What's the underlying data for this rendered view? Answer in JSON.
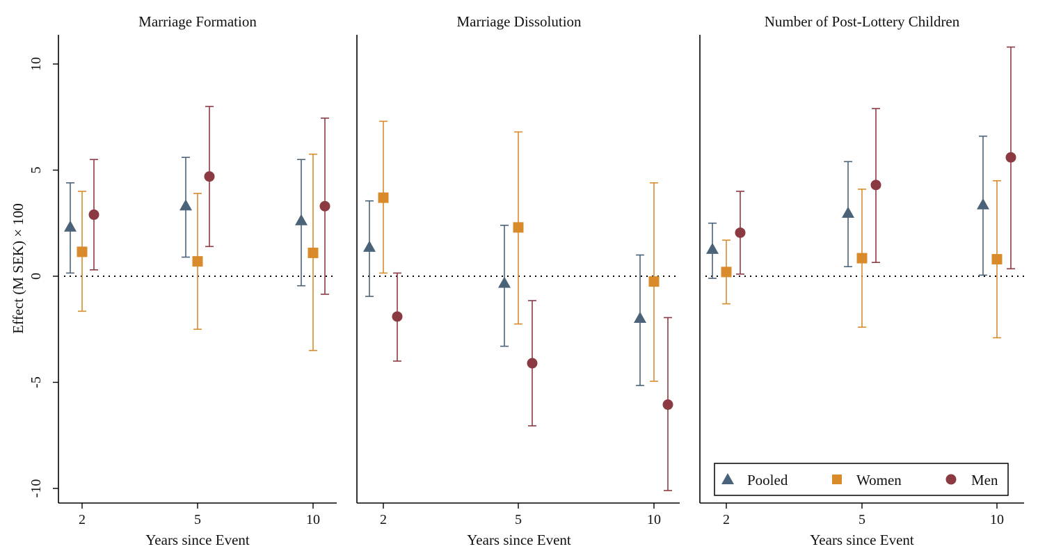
{
  "chart_data": {
    "type": "scatter",
    "ylabel": "Effect (M SEK) × 100",
    "ylim": [
      -10.8,
      11.4
    ],
    "yticks": [
      10,
      5,
      0,
      -5,
      -10
    ],
    "ytick_labels": [
      "10",
      "5",
      "0",
      "-5",
      "-10"
    ],
    "xlabel": "Years since Event",
    "categories": [
      "2",
      "5",
      "10"
    ],
    "reference_line": 0,
    "legend": {
      "position": "bottom-right",
      "items": [
        "Pooled",
        "Women",
        "Men"
      ]
    },
    "series_styles": [
      {
        "name": "Pooled",
        "marker": "triangle",
        "color": "#4a6378"
      },
      {
        "name": "Women",
        "marker": "square",
        "color": "#d98b2b"
      },
      {
        "name": "Men",
        "marker": "circle",
        "color": "#8b3a42"
      }
    ],
    "panels": [
      {
        "title": "Marriage Formation",
        "series": [
          {
            "name": "Pooled",
            "values": [
              2.3,
              3.3,
              2.6
            ],
            "ci_low": [
              0.15,
              0.9,
              -0.45
            ],
            "ci_high": [
              4.4,
              5.6,
              5.5
            ]
          },
          {
            "name": "Women",
            "values": [
              1.15,
              0.7,
              1.1
            ],
            "ci_low": [
              -1.65,
              -2.5,
              -3.5
            ],
            "ci_high": [
              4.0,
              3.9,
              5.75
            ]
          },
          {
            "name": "Men",
            "values": [
              2.9,
              4.7,
              3.3
            ],
            "ci_low": [
              0.3,
              1.4,
              -0.85
            ],
            "ci_high": [
              5.5,
              8.0,
              7.45
            ]
          }
        ]
      },
      {
        "title": "Marriage Dissolution",
        "series": [
          {
            "name": "Pooled",
            "values": [
              1.35,
              -0.35,
              -2.0
            ],
            "ci_low": [
              -0.95,
              -3.3,
              -5.15
            ],
            "ci_high": [
              3.55,
              2.4,
              1.0
            ]
          },
          {
            "name": "Women",
            "values": [
              3.7,
              2.3,
              -0.25
            ],
            "ci_low": [
              0.15,
              -2.25,
              -4.95
            ],
            "ci_high": [
              7.3,
              6.8,
              4.4
            ]
          },
          {
            "name": "Men",
            "values": [
              -1.9,
              -4.1,
              -6.05
            ],
            "ci_low": [
              -4.0,
              -7.05,
              -10.1
            ],
            "ci_high": [
              0.15,
              -1.15,
              -1.95
            ]
          }
        ]
      },
      {
        "title": "Number of Post-Lottery Children",
        "series": [
          {
            "name": "Pooled",
            "values": [
              1.25,
              2.95,
              3.35
            ],
            "ci_low": [
              -0.1,
              0.45,
              0.05
            ],
            "ci_high": [
              2.5,
              5.4,
              6.6
            ]
          },
          {
            "name": "Women",
            "values": [
              0.2,
              0.85,
              0.8
            ],
            "ci_low": [
              -1.3,
              -2.4,
              -2.9
            ],
            "ci_high": [
              1.7,
              4.1,
              4.5
            ]
          },
          {
            "name": "Men",
            "values": [
              2.05,
              4.3,
              5.6
            ],
            "ci_low": [
              0.1,
              0.65,
              0.35
            ],
            "ci_high": [
              4.0,
              7.9,
              10.8
            ]
          }
        ]
      }
    ]
  }
}
